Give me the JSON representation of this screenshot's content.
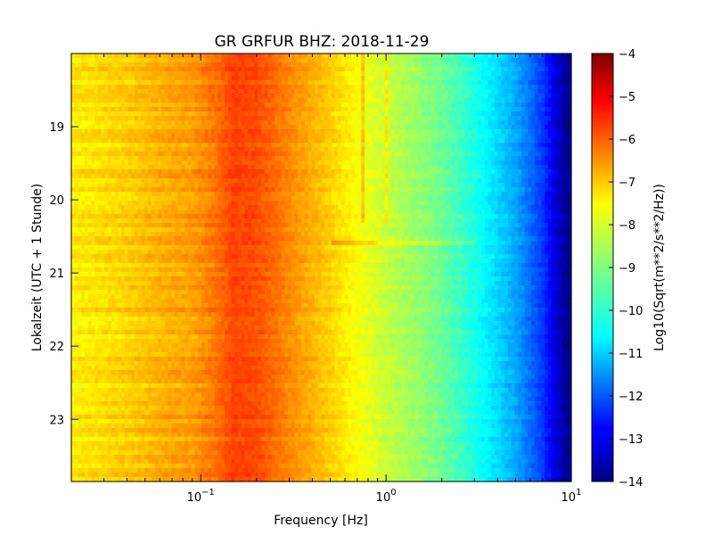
{
  "chart_data": {
    "type": "heatmap",
    "title": "GR GRFUR BHZ: 2018-11-29",
    "xlabel": "Frequency [Hz]",
    "ylabel": "Lokalzeit (UTC + 1 Stunde)",
    "colorbar_label": "Log10(Sqrt(m**2/s**2/Hz))",
    "x_scale": "log",
    "xlim": [
      0.02,
      10
    ],
    "x_ticks": [
      {
        "base": "10",
        "exp": "−1",
        "value": 0.1
      },
      {
        "base": "10",
        "exp": "0",
        "value": 1
      },
      {
        "base": "10",
        "exp": "1",
        "value": 10
      }
    ],
    "ylim": [
      18.0,
      23.85
    ],
    "y_inverted": true,
    "y_ticks": [
      "19",
      "20",
      "21",
      "22",
      "23"
    ],
    "colormap": "jet",
    "clim": [
      -14,
      -4
    ],
    "colorbar_ticks": [
      "−4",
      "−5",
      "−6",
      "−7",
      "−8",
      "−9",
      "−10",
      "−11",
      "−12",
      "−13",
      "−14"
    ],
    "spectrum_profile": {
      "frequency": [
        0.02,
        0.04,
        0.06,
        0.09,
        0.12,
        0.15,
        0.2,
        0.3,
        0.5,
        0.7,
        1.0,
        1.5,
        2.0,
        3.0,
        5.0,
        7.0,
        9.0,
        10.0
      ],
      "level": [
        -7.6,
        -7.3,
        -7.0,
        -6.8,
        -6.4,
        -5.9,
        -6.0,
        -6.6,
        -7.3,
        -7.8,
        -8.3,
        -8.8,
        -9.2,
        -10.0,
        -11.1,
        -12.2,
        -13.6,
        -13.9
      ]
    },
    "spectral_lines": [
      0.75,
      1.0
    ],
    "event_time": 20.6
  }
}
